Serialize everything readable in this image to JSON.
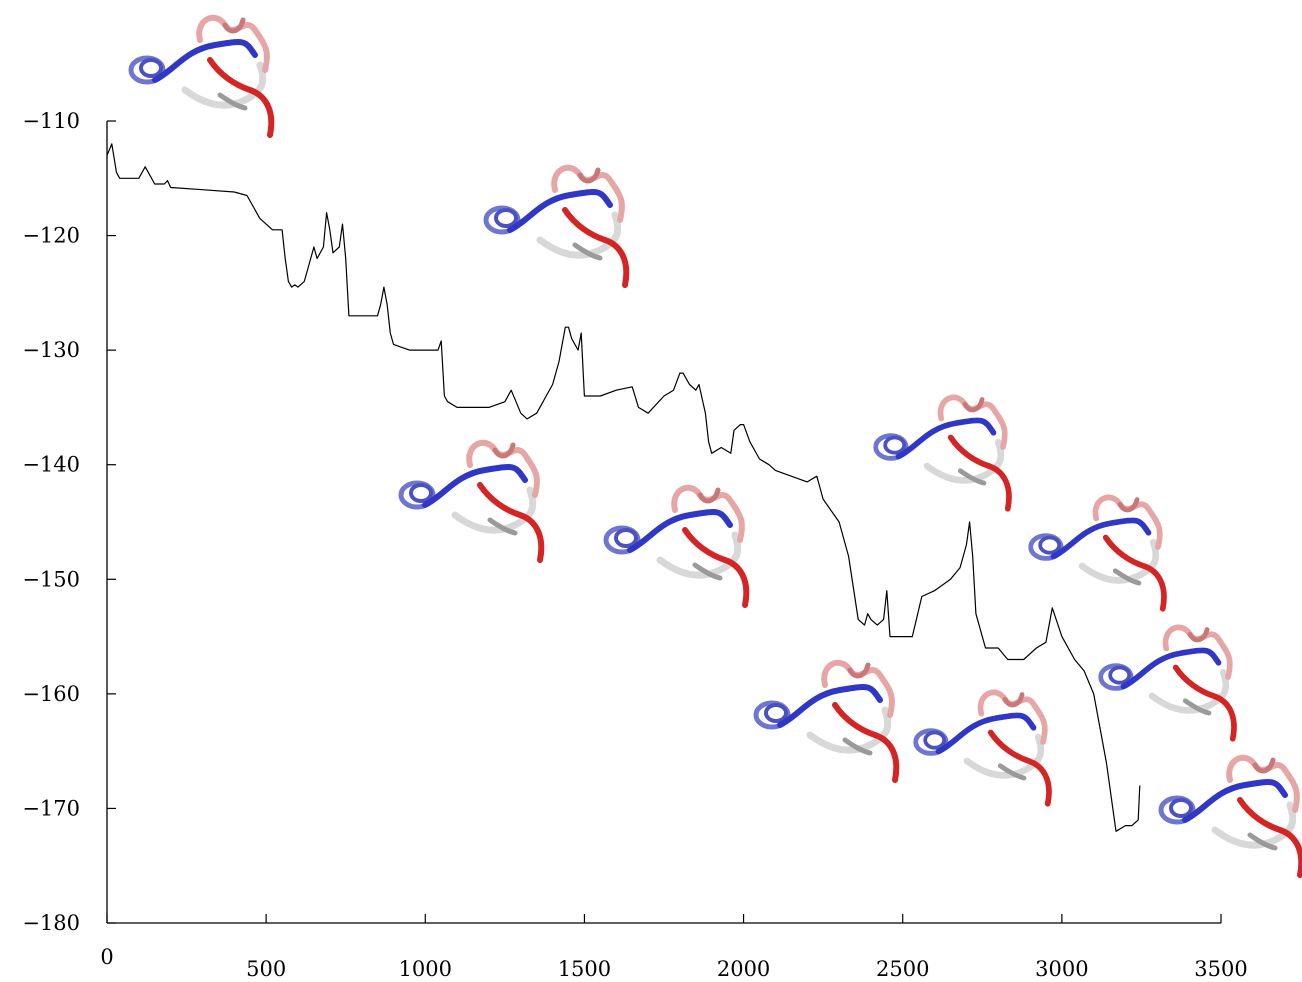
{
  "chart_data": {
    "type": "line",
    "title": "",
    "xlabel": "",
    "ylabel": "",
    "xlim": [
      0,
      3500
    ],
    "ylim": [
      -180,
      -100
    ],
    "x_ticks": [
      0,
      500,
      1000,
      1500,
      2000,
      2500,
      3000,
      3500
    ],
    "x_tick_labels": [
      "0",
      "500",
      "1000",
      "1500",
      "2000",
      "2500",
      "3000",
      "3500"
    ],
    "y_ticks": [
      -110,
      -120,
      -130,
      -140,
      -150,
      -160,
      -170,
      -180
    ],
    "y_tick_labels": [
      "−110",
      "−120",
      "−130",
      "−140",
      "−150",
      "−160",
      "−170",
      "−180"
    ],
    "grid": false,
    "line_color": "#000000",
    "series": [
      {
        "x": [
          0,
          15,
          30,
          40,
          60,
          100,
          120,
          130,
          150,
          170,
          180,
          190,
          200,
          300,
          400,
          440,
          480,
          520,
          550,
          560,
          570,
          580,
          590,
          600,
          620,
          640,
          650,
          660,
          680,
          690,
          700,
          710,
          730,
          740,
          750,
          760,
          800,
          850,
          860,
          870,
          880,
          890,
          900,
          950,
          1000,
          1040,
          1050,
          1060,
          1070,
          1100,
          1200,
          1250,
          1270,
          1300,
          1320,
          1350,
          1380,
          1400,
          1420,
          1440,
          1450,
          1460,
          1480,
          1490,
          1500,
          1550,
          1600,
          1650,
          1670,
          1700,
          1750,
          1780,
          1800,
          1810,
          1830,
          1850,
          1860,
          1880,
          1890,
          1900,
          1930,
          1960,
          1970,
          1990,
          2000,
          2020,
          2050,
          2080,
          2100,
          2150,
          2200,
          2230,
          2250,
          2300,
          2330,
          2360,
          2380,
          2390,
          2400,
          2420,
          2440,
          2450,
          2460,
          2500,
          2530,
          2560,
          2600,
          2650,
          2680,
          2690,
          2700,
          2710,
          2720,
          2730,
          2760,
          2790,
          2800,
          2830,
          2880,
          2920,
          2950,
          2960,
          2970,
          3000,
          3040,
          3070,
          3100,
          3140,
          3160,
          3170,
          3200,
          3220,
          3240,
          3245
        ],
        "y": [
          -113,
          -112,
          -114.5,
          -115,
          -115,
          -115,
          -114,
          -114.5,
          -115.5,
          -115.5,
          -115.5,
          -115.2,
          -115.8,
          -116,
          -116.2,
          -116.5,
          -118.5,
          -119.5,
          -119.5,
          -122,
          -124,
          -124.5,
          -124.3,
          -124.5,
          -124,
          -122,
          -121,
          -122,
          -121,
          -118,
          -119.5,
          -121.5,
          -121,
          -119,
          -122,
          -127,
          -127,
          -127,
          -126,
          -124.5,
          -126,
          -128.5,
          -129.5,
          -130,
          -130,
          -130,
          -129.2,
          -134,
          -134.5,
          -135,
          -135,
          -134.5,
          -133.5,
          -135.5,
          -136,
          -135.5,
          -134,
          -133,
          -131,
          -128,
          -128,
          -129,
          -130,
          -128.5,
          -134,
          -134,
          -133.5,
          -133.2,
          -135,
          -135.5,
          -134,
          -133.5,
          -132,
          -132,
          -133,
          -133.5,
          -133,
          -135.5,
          -138,
          -139,
          -138.5,
          -139,
          -137,
          -136.5,
          -136.5,
          -138,
          -139.5,
          -140,
          -140.5,
          -141,
          -141.5,
          -141,
          -143,
          -145,
          -148,
          -153.5,
          -154,
          -153,
          -153.5,
          -154,
          -153.5,
          -151,
          -155,
          -155,
          -155,
          -151.5,
          -151,
          -150,
          -149,
          -148,
          -147,
          -145,
          -148,
          -153,
          -156,
          -156,
          -156,
          -157,
          -157,
          -156,
          -155.5,
          -154,
          -152.5,
          -155,
          -157,
          -158,
          -160,
          -166,
          -170,
          -172,
          -171.5,
          -171.5,
          -171,
          -168
        ]
      }
    ]
  }
}
